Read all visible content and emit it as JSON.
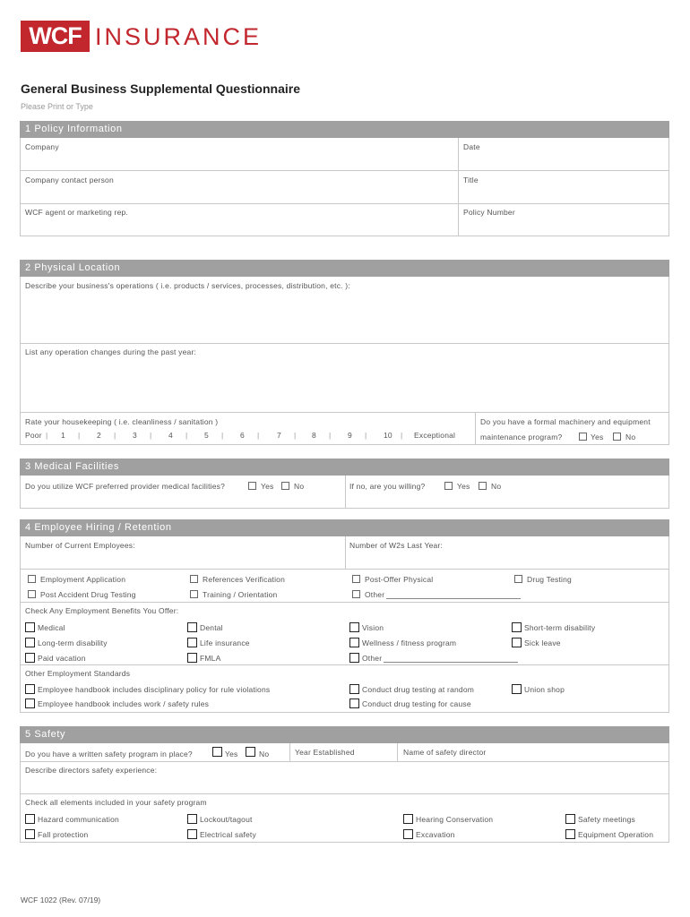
{
  "logo": {
    "mark": "WCF",
    "text": "INSURANCE",
    "color": "#c1272d"
  },
  "title": "General Business Supplemental Questionnaire",
  "subtitle": "Please Print or Type",
  "s1": {
    "header": "1 Policy Information",
    "company": "Company",
    "date": "Date",
    "contact": "Company contact person",
    "title": "Title",
    "agent": "WCF agent or marketing rep.",
    "policy": "Policy Number"
  },
  "s2": {
    "header": "2 Physical Location",
    "describe": "Describe your business's operations ( i.e. products / services, processes, distribution, etc. ):",
    "changes": "List any operation changes during the past year:",
    "rate": "Rate your housekeeping ( i.e. cleanliness / sanitation )",
    "scale": [
      "Poor",
      "1",
      "2",
      "3",
      "4",
      "5",
      "6",
      "7",
      "8",
      "9",
      "10",
      "Exceptional"
    ],
    "machinery1": "Do you have a formal machinery and equipment",
    "machinery2": "maintenance program?",
    "yes": "Yes",
    "no": "No"
  },
  "s3": {
    "header": "3 Medical Facilities",
    "q1": "Do you utilize WCF preferred provider medical facilities?",
    "q2": "If no, are you willing?",
    "yes": "Yes",
    "no": "No"
  },
  "s4": {
    "header": "4 Employee Hiring / Retention",
    "employees": "Number of Current Employees:",
    "w2s": "Number of W2s Last Year:",
    "hiring": [
      "Employment Application",
      "References Verification",
      "Post-Offer Physical",
      "Drug Testing",
      "Post Accident Drug Testing",
      "Training / Orientation",
      "Other"
    ],
    "benefits_label": "Check Any Employment Benefits You Offer:",
    "benefits": [
      "Medical",
      "Dental",
      "Vision",
      "Short-term disability",
      "Long-term disability",
      "Life insurance",
      "Wellness / fitness program",
      "Sick leave",
      "Paid vacation",
      "FMLA",
      "Other"
    ],
    "standards_label": "Other Employment Standards",
    "standards": [
      "Employee handbook includes disciplinary policy for rule violations",
      "Conduct drug testing at random",
      "Union shop",
      "Employee handbook includes work / safety rules",
      "Conduct drug testing for cause"
    ]
  },
  "s5": {
    "header": "5 Safety",
    "q1": "Do you have a written safety program in place?",
    "yes": "Yes",
    "no": "No",
    "year": "Year Established",
    "director": "Name of safety director",
    "experience": "Describe directors safety experience:",
    "elements_label": "Check all elements included in your safety program",
    "elements": [
      "Hazard communication",
      "Lockout/tagout",
      "Hearing Conservation",
      "Safety meetings",
      "Fall protection",
      "Electrical safety",
      "Excavation",
      "Equipment Operation"
    ]
  },
  "footer": "WCF 1022 (Rev. 07/19)"
}
